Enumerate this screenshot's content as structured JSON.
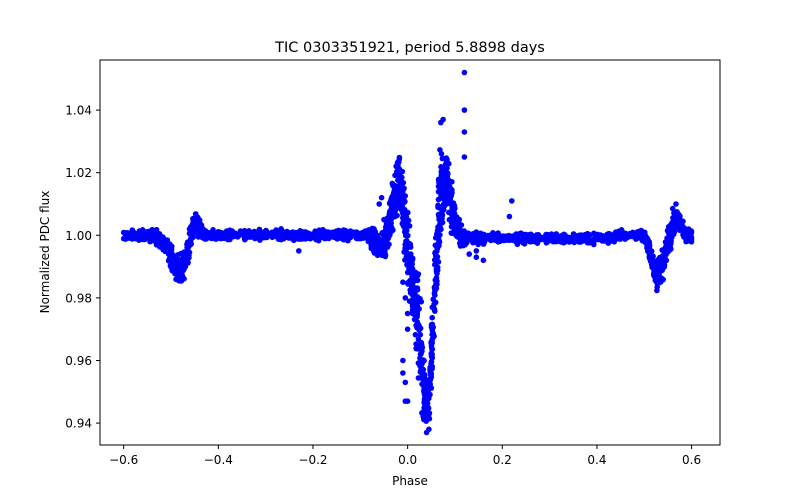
{
  "chart_data": {
    "type": "scatter",
    "title": "TIC 0303351921, period 5.8898 days",
    "xlabel": "Phase",
    "ylabel": "Normalized PDC flux",
    "xlim": [
      -0.65,
      0.66
    ],
    "ylim": [
      0.933,
      1.056
    ],
    "xticks": [
      -0.6,
      -0.4,
      -0.2,
      0.0,
      0.2,
      0.4,
      0.6
    ],
    "xtick_labels": [
      "−0.6",
      "−0.4",
      "−0.2",
      "0.0",
      "0.2",
      "0.4",
      "0.6"
    ],
    "yticks": [
      0.94,
      0.96,
      0.98,
      1.0,
      1.02,
      1.04
    ],
    "ytick_labels": [
      "0.94",
      "0.96",
      "0.98",
      "1.00",
      "1.02",
      "1.04"
    ],
    "grid": false,
    "marker_color": "#0000ff",
    "series": [
      {
        "name": "PDC flux",
        "x": [
          -0.6,
          -0.59,
          -0.58,
          -0.57,
          -0.56,
          -0.55,
          -0.54,
          -0.53,
          -0.52,
          -0.51,
          -0.5,
          -0.495,
          -0.49,
          -0.485,
          -0.48,
          -0.475,
          -0.47,
          -0.465,
          -0.46,
          -0.455,
          -0.45,
          -0.445,
          -0.44,
          -0.435,
          -0.43,
          -0.42,
          -0.41,
          -0.4,
          -0.39,
          -0.38,
          -0.36,
          -0.34,
          -0.32,
          -0.3,
          -0.28,
          -0.26,
          -0.24,
          -0.22,
          -0.2,
          -0.18,
          -0.16,
          -0.14,
          -0.12,
          -0.1,
          -0.09,
          -0.08,
          -0.075,
          -0.07,
          -0.065,
          -0.06,
          -0.055,
          -0.05,
          -0.045,
          -0.04,
          -0.035,
          -0.03,
          -0.025,
          -0.02,
          -0.015,
          -0.01,
          -0.005,
          0.0,
          0.005,
          0.01,
          0.015,
          0.02,
          0.025,
          0.03,
          0.035,
          0.04,
          0.045,
          0.05,
          0.055,
          0.06,
          0.065,
          0.07,
          0.075,
          0.08,
          0.085,
          0.09,
          0.095,
          0.1,
          0.105,
          0.11,
          0.115,
          0.12,
          0.13,
          0.14,
          0.15,
          0.16,
          0.18,
          0.2,
          0.22,
          0.24,
          0.26,
          0.28,
          0.3,
          0.32,
          0.34,
          0.36,
          0.38,
          0.4,
          0.42,
          0.44,
          0.46,
          0.48,
          0.5,
          0.505,
          0.51,
          0.515,
          0.52,
          0.525,
          0.53,
          0.535,
          0.54,
          0.545,
          0.55,
          0.555,
          0.56,
          0.565,
          0.57,
          0.575,
          0.58,
          0.585,
          0.59,
          0.595,
          0.6
        ],
        "y_center": [
          1.0,
          1.0,
          1.0,
          1.0,
          1.0,
          1.0,
          1.0,
          0.999,
          0.997,
          0.996,
          0.994,
          0.992,
          0.99,
          0.989,
          0.989,
          0.99,
          0.992,
          0.995,
          0.998,
          1.001,
          1.004,
          1.004,
          1.002,
          1.001,
          1.0,
          1.0,
          1.0,
          1.0,
          1.0,
          1.0,
          1.0,
          1.0,
          1.0,
          1.0,
          1.0,
          1.0,
          1.0,
          1.0,
          1.0,
          1.0,
          1.0,
          1.0,
          1.0,
          1.0,
          1.0,
          1.0,
          0.999,
          0.998,
          0.997,
          0.996,
          0.996,
          0.998,
          1.0,
          1.003,
          1.006,
          1.01,
          1.014,
          1.017,
          1.016,
          1.012,
          1.004,
          0.996,
          0.99,
          0.985,
          0.98,
          0.975,
          0.968,
          0.958,
          0.95,
          0.945,
          0.948,
          0.96,
          0.975,
          0.992,
          1.005,
          1.013,
          1.017,
          1.018,
          1.016,
          1.012,
          1.008,
          1.004,
          1.001,
          1.0,
          0.999,
          0.999,
          0.999,
          0.999,
          0.999,
          0.999,
          0.999,
          0.999,
          0.999,
          0.999,
          0.999,
          0.999,
          0.999,
          0.999,
          0.999,
          0.999,
          0.999,
          0.999,
          0.999,
          1.0,
          1.0,
          1.0,
          1.0,
          0.998,
          0.996,
          0.993,
          0.99,
          0.988,
          0.988,
          0.989,
          0.991,
          0.994,
          0.997,
          1.0,
          1.003,
          1.005,
          1.005,
          1.004,
          1.002,
          1.001,
          1.0,
          1.0,
          1.0
        ],
        "y_spread": [
          0.002,
          0.002,
          0.002,
          0.002,
          0.002,
          0.002,
          0.0025,
          0.003,
          0.004,
          0.004,
          0.005,
          0.005,
          0.006,
          0.006,
          0.006,
          0.006,
          0.006,
          0.006,
          0.006,
          0.005,
          0.004,
          0.004,
          0.003,
          0.003,
          0.002,
          0.002,
          0.002,
          0.002,
          0.002,
          0.002,
          0.002,
          0.002,
          0.002,
          0.002,
          0.002,
          0.002,
          0.002,
          0.002,
          0.002,
          0.002,
          0.002,
          0.002,
          0.002,
          0.002,
          0.0025,
          0.003,
          0.004,
          0.004,
          0.005,
          0.005,
          0.006,
          0.007,
          0.008,
          0.009,
          0.01,
          0.011,
          0.012,
          0.012,
          0.012,
          0.013,
          0.014,
          0.015,
          0.016,
          0.016,
          0.017,
          0.018,
          0.018,
          0.016,
          0.012,
          0.008,
          0.01,
          0.013,
          0.015,
          0.016,
          0.016,
          0.015,
          0.014,
          0.013,
          0.012,
          0.011,
          0.01,
          0.008,
          0.006,
          0.005,
          0.004,
          0.003,
          0.002,
          0.002,
          0.002,
          0.002,
          0.002,
          0.002,
          0.002,
          0.002,
          0.002,
          0.002,
          0.002,
          0.002,
          0.002,
          0.002,
          0.002,
          0.002,
          0.002,
          0.002,
          0.002,
          0.002,
          0.0025,
          0.003,
          0.004,
          0.005,
          0.006,
          0.006,
          0.006,
          0.006,
          0.006,
          0.006,
          0.006,
          0.006,
          0.005,
          0.005,
          0.004,
          0.004,
          0.004,
          0.003,
          0.003,
          0.003,
          0.003
        ],
        "outliers": [
          {
            "x": 0.12,
            "y": 1.052
          },
          {
            "x": 0.12,
            "y": 1.04
          },
          {
            "x": 0.12,
            "y": 1.033
          },
          {
            "x": 0.12,
            "y": 1.025
          },
          {
            "x": 0.22,
            "y": 1.011
          },
          {
            "x": 0.215,
            "y": 1.006
          },
          {
            "x": -0.23,
            "y": 0.995
          },
          {
            "x": -0.01,
            "y": 0.96
          },
          {
            "x": -0.01,
            "y": 0.956
          },
          {
            "x": -0.005,
            "y": 0.953
          },
          {
            "x": -0.005,
            "y": 0.947
          },
          {
            "x": 0.0,
            "y": 0.947
          },
          {
            "x": 0.0,
            "y": 0.97
          },
          {
            "x": 0.0,
            "y": 0.975
          },
          {
            "x": -0.005,
            "y": 0.98
          },
          {
            "x": -0.01,
            "y": 0.985
          },
          {
            "x": 0.145,
            "y": 0.993
          },
          {
            "x": 0.16,
            "y": 0.992
          },
          {
            "x": 0.145,
            "y": 0.995
          },
          {
            "x": 0.13,
            "y": 0.994
          },
          {
            "x": -0.06,
            "y": 1.01
          },
          {
            "x": -0.055,
            "y": 1.012
          },
          {
            "x": -0.05,
            "y": 1.005
          },
          {
            "x": 0.07,
            "y": 1.036
          },
          {
            "x": 0.075,
            "y": 1.037
          },
          {
            "x": 0.04,
            "y": 0.937
          },
          {
            "x": 0.045,
            "y": 0.938
          }
        ]
      }
    ]
  }
}
